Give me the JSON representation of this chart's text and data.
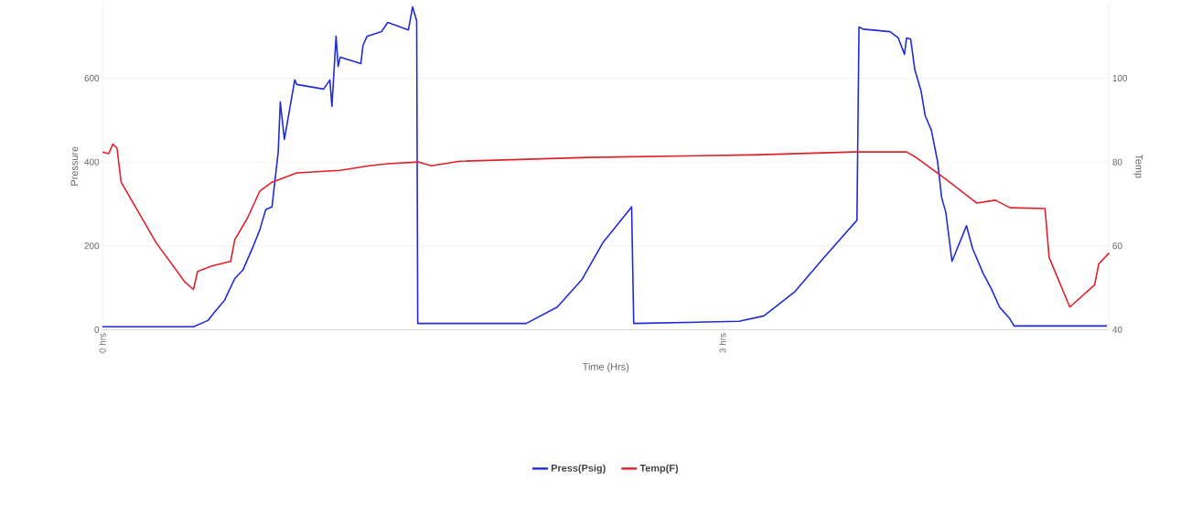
{
  "chart_data": {
    "type": "line",
    "xlabel": "Time (Hrs)",
    "ylabel": "Pressure",
    "y2label": "Temp",
    "xlim": [
      0,
      4.87
    ],
    "xticks": [
      {
        "value": 0,
        "label": "0 hrs"
      },
      {
        "value": 3,
        "label": "3 hrs"
      }
    ],
    "ylim": [
      0,
      780
    ],
    "yticks": [
      0,
      200,
      400,
      600
    ],
    "y2lim": [
      40,
      118
    ],
    "y2ticks": [
      40,
      60,
      80,
      100
    ],
    "grid": "y",
    "legend": "bottom",
    "marker": "none",
    "line_style": "solid",
    "series": [
      {
        "name": "Press(Psig)",
        "color": "#1f2bd6",
        "x": [
          0,
          0.44,
          0.51,
          0.54,
          0.59,
          0.64,
          0.68,
          0.73,
          0.76,
          0.79,
          0.82,
          0.85,
          0.86,
          0.88,
          0.93,
          0.94,
          1.07,
          1.1,
          1.11,
          1.13,
          1.14,
          1.15,
          1.25,
          1.26,
          1.28,
          1.35,
          1.38,
          1.48,
          1.5,
          1.52,
          1.525,
          2.05,
          2.2,
          2.32,
          2.42,
          2.56,
          2.57,
          3.08,
          3.2,
          3.35,
          3.49,
          3.65,
          3.66,
          3.68,
          3.81,
          3.85,
          3.88,
          3.89,
          3.91,
          3.93,
          3.96,
          3.98,
          4.01,
          4.04,
          4.06,
          4.08,
          4.11,
          4.18,
          4.21,
          4.26,
          4.3,
          4.34,
          4.39,
          4.41,
          4.86
        ],
        "values": [
          7,
          7,
          22,
          41,
          70,
          122,
          143,
          200,
          237,
          287,
          293,
          424,
          543,
          454,
          596,
          585,
          574,
          596,
          533,
          700,
          628,
          650,
          635,
          678,
          700,
          711,
          733,
          715,
          770,
          737,
          15,
          15,
          54,
          120,
          207,
          293,
          15,
          20,
          33,
          91,
          172,
          261,
          722,
          717,
          711,
          696,
          657,
          696,
          693,
          620,
          570,
          511,
          476,
          402,
          315,
          280,
          163,
          248,
          193,
          135,
          98,
          54,
          26,
          9,
          9
        ]
      },
      {
        "name": "Temp(F)",
        "color": "#e0202a",
        "axis": "y2",
        "x": [
          0,
          0.03,
          0.05,
          0.07,
          0.09,
          0.26,
          0.4,
          0.44,
          0.46,
          0.53,
          0.62,
          0.64,
          0.7,
          0.76,
          0.82,
          0.94,
          1.15,
          1.29,
          1.38,
          1.53,
          1.59,
          1.73,
          2.35,
          3.14,
          3.64,
          3.89,
          3.93,
          4.08,
          4.23,
          4.32,
          4.39,
          4.56,
          4.58,
          4.68,
          4.8,
          4.82,
          4.87
        ],
        "values": [
          82.4,
          82.0,
          84.3,
          83.3,
          75.2,
          60.7,
          51.3,
          49.6,
          53.9,
          55.2,
          56.3,
          61.5,
          66.5,
          73.0,
          75.2,
          77.4,
          78.0,
          79.1,
          79.6,
          80.0,
          79.1,
          80.2,
          81.1,
          81.7,
          82.4,
          82.4,
          81.3,
          75.9,
          70.2,
          70.9,
          69.1,
          68.9,
          57.2,
          45.4,
          50.7,
          55.7,
          58.3
        ]
      }
    ]
  }
}
